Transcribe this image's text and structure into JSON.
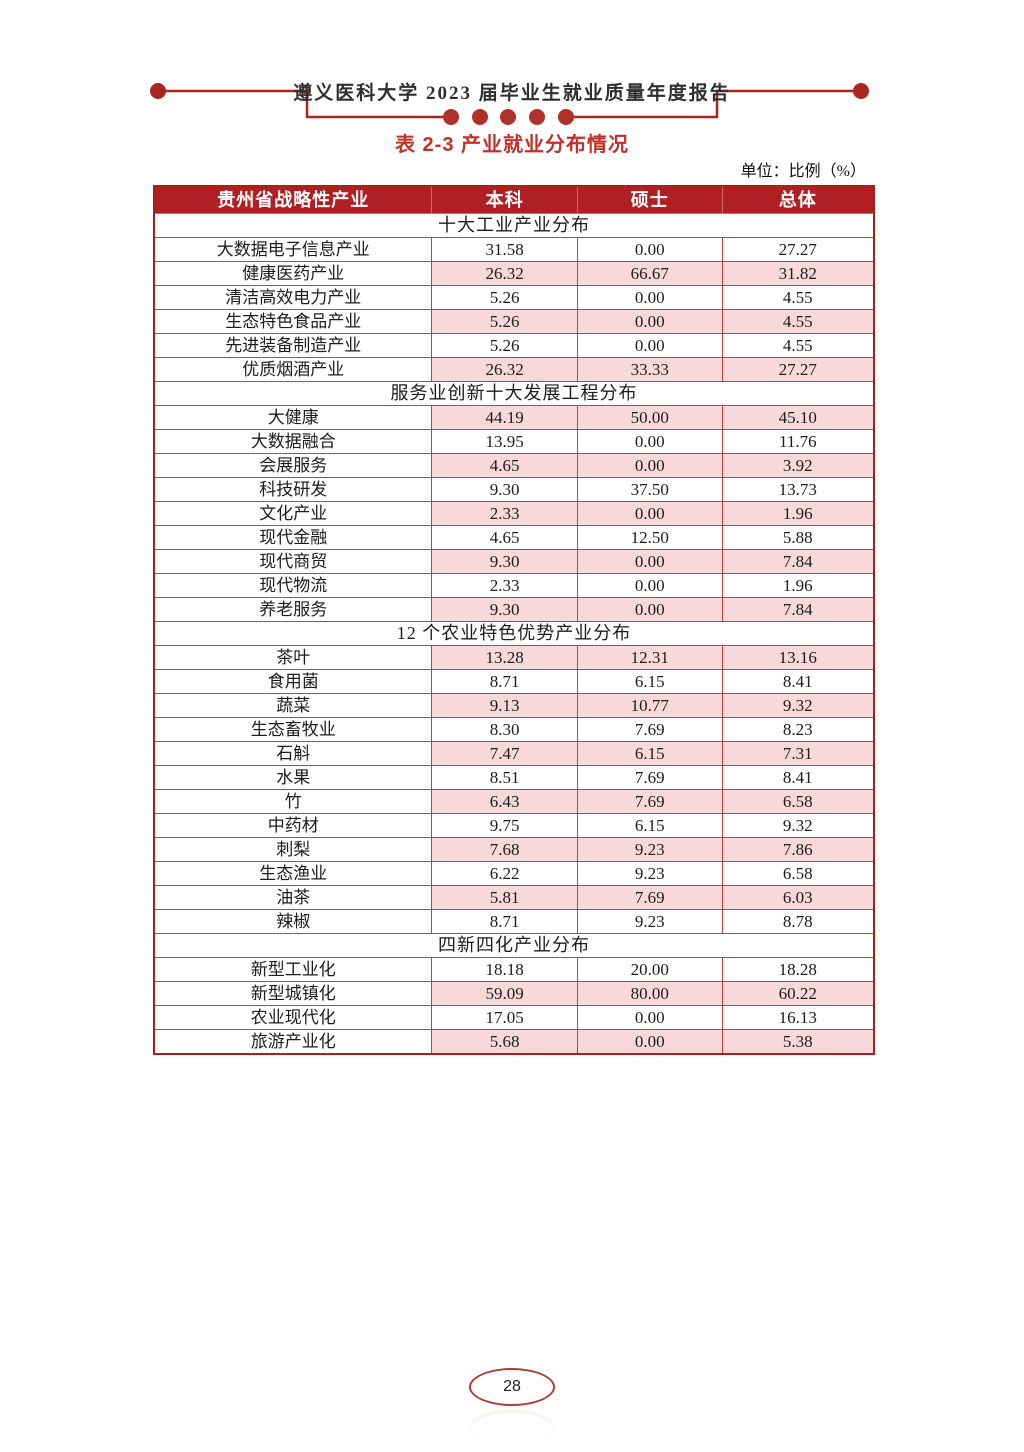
{
  "page": {
    "header_title": "遵义医科大学 2023 届毕业生就业质量年度报告",
    "table_title": "表 2-3 产业就业分布情况",
    "unit_label": "单位：比例（%）",
    "page_number": "28"
  },
  "colors": {
    "header_bg": "#b01f24",
    "border_red": "#c5403c",
    "outer_border": "#a8201d",
    "pink_row": "#f8d9d9",
    "title_red": "#c03229",
    "banner_line": "#a8281f"
  },
  "icons": {
    "banner_left_dot": "circle",
    "banner_right_dot": "circle",
    "banner_middle_dots": "five-circles"
  },
  "table": {
    "columns": [
      "贵州省战略性产业",
      "本科",
      "硕士",
      "总体"
    ],
    "sections": [
      {
        "header": "十大工业产业分布",
        "rows": [
          [
            "大数据电子信息产业",
            "31.58",
            "0.00",
            "27.27"
          ],
          [
            "健康医药产业",
            "26.32",
            "66.67",
            "31.82"
          ],
          [
            "清洁高效电力产业",
            "5.26",
            "0.00",
            "4.55"
          ],
          [
            "生态特色食品产业",
            "5.26",
            "0.00",
            "4.55"
          ],
          [
            "先进装备制造产业",
            "5.26",
            "0.00",
            "4.55"
          ],
          [
            "优质烟酒产业",
            "26.32",
            "33.33",
            "27.27"
          ]
        ]
      },
      {
        "header": "服务业创新十大发展工程分布",
        "rows": [
          [
            "大健康",
            "44.19",
            "50.00",
            "45.10"
          ],
          [
            "大数据融合",
            "13.95",
            "0.00",
            "11.76"
          ],
          [
            "会展服务",
            "4.65",
            "0.00",
            "3.92"
          ],
          [
            "科技研发",
            "9.30",
            "37.50",
            "13.73"
          ],
          [
            "文化产业",
            "2.33",
            "0.00",
            "1.96"
          ],
          [
            "现代金融",
            "4.65",
            "12.50",
            "5.88"
          ],
          [
            "现代商贸",
            "9.30",
            "0.00",
            "7.84"
          ],
          [
            "现代物流",
            "2.33",
            "0.00",
            "1.96"
          ],
          [
            "养老服务",
            "9.30",
            "0.00",
            "7.84"
          ]
        ]
      },
      {
        "header": "12 个农业特色优势产业分布",
        "rows": [
          [
            "茶叶",
            "13.28",
            "12.31",
            "13.16"
          ],
          [
            "食用菌",
            "8.71",
            "6.15",
            "8.41"
          ],
          [
            "蔬菜",
            "9.13",
            "10.77",
            "9.32"
          ],
          [
            "生态畜牧业",
            "8.30",
            "7.69",
            "8.23"
          ],
          [
            "石斛",
            "7.47",
            "6.15",
            "7.31"
          ],
          [
            "水果",
            "8.51",
            "7.69",
            "8.41"
          ],
          [
            "竹",
            "6.43",
            "7.69",
            "6.58"
          ],
          [
            "中药材",
            "9.75",
            "6.15",
            "9.32"
          ],
          [
            "刺梨",
            "7.68",
            "9.23",
            "7.86"
          ],
          [
            "生态渔业",
            "6.22",
            "9.23",
            "6.58"
          ],
          [
            "油茶",
            "5.81",
            "7.69",
            "6.03"
          ],
          [
            "辣椒",
            "8.71",
            "9.23",
            "8.78"
          ]
        ]
      },
      {
        "header": "四新四化产业分布",
        "rows": [
          [
            "新型工业化",
            "18.18",
            "20.00",
            "18.28"
          ],
          [
            "新型城镇化",
            "59.09",
            "80.00",
            "60.22"
          ],
          [
            "农业现代化",
            "17.05",
            "0.00",
            "16.13"
          ],
          [
            "旅游产业化",
            "5.68",
            "0.00",
            "5.38"
          ]
        ]
      }
    ]
  }
}
